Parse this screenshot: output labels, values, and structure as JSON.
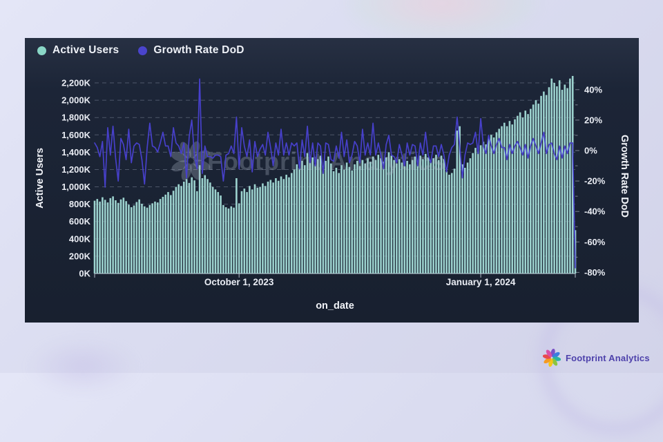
{
  "legend": {
    "items": [
      {
        "label": "Active Users",
        "color": "#89d6c6"
      },
      {
        "label": "Growth Rate DoD",
        "color": "#4a44cc"
      }
    ]
  },
  "watermark": {
    "text": "Footprint Analytics"
  },
  "footer": {
    "brand": "Footprint Analytics"
  },
  "colors": {
    "bar": "#9dd3cf",
    "line": "#4740cb",
    "grid": "rgba(148,158,178,0.42)",
    "baseline": "rgba(205,211,224,0.85)",
    "tick_text": "#eaedf4",
    "axis_title": "#f2f4f9",
    "watermark": "rgba(172,182,198,0.30)",
    "panel_bg": "#1c2537",
    "page_bg": "#dadcf0",
    "brand_text": "#4d41ab"
  },
  "chart_data": {
    "type": "bar+line",
    "title": "",
    "x_axis": {
      "label": "on_date",
      "ticks": [
        {
          "label": "October 1, 2023",
          "index": 55
        },
        {
          "label": "January 1, 2024",
          "index": 147
        }
      ]
    },
    "y_left": {
      "label": "Active Users",
      "min": 0,
      "max": 2200,
      "tick_step": 200,
      "tick_labels": [
        "0K",
        "200K",
        "400K",
        "600K",
        "800K",
        "1,000K",
        "1,200K",
        "1,400K",
        "1,600K",
        "1,800K",
        "2,000K",
        "2,200K"
      ]
    },
    "y_right": {
      "label": "Growth Rate DoD",
      "min": -80,
      "max": 40,
      "tick_step": 20,
      "tick_labels": [
        "-80%",
        "-60%",
        "-40%",
        "-20%",
        "0%",
        "20%",
        "40%"
      ]
    },
    "grid": "dashed-horizontal",
    "legend_position": "top-left",
    "series": [
      {
        "name": "Active Users",
        "type": "bar",
        "unit": "K",
        "values": [
          840,
          860,
          830,
          880,
          850,
          820,
          870,
          890,
          845,
          815,
          855,
          875,
          835,
          795,
          765,
          785,
          825,
          855,
          805,
          775,
          760,
          790,
          810,
          830,
          820,
          860,
          885,
          910,
          940,
          905,
          955,
          1000,
          1030,
          1010,
          1060,
          1090,
          1045,
          1110,
          1075,
          950,
          1250,
          1100,
          1135,
          1090,
          1050,
          1000,
          970,
          940,
          900,
          790,
          765,
          750,
          775,
          760,
          1100,
          810,
          950,
          980,
          940,
          1010,
          970,
          1030,
          990,
          1000,
          1040,
          1010,
          1060,
          1080,
          1050,
          1100,
          1070,
          1120,
          1090,
          1140,
          1110,
          1160,
          1200,
          1260,
          1220,
          1300,
          1250,
          1390,
          1280,
          1340,
          1260,
          1320,
          1360,
          1240,
          1300,
          1350,
          1270,
          1180,
          1220,
          1160,
          1250,
          1200,
          1280,
          1230,
          1190,
          1260,
          1300,
          1240,
          1310,
          1270,
          1330,
          1290,
          1350,
          1310,
          1370,
          1330,
          1290,
          1340,
          1400,
          1360,
          1310,
          1270,
          1320,
          1280,
          1240,
          1300,
          1260,
          1310,
          1350,
          1300,
          1360,
          1320,
          1380,
          1340,
          1290,
          1330,
          1370,
          1310,
          1360,
          1320,
          1180,
          1140,
          1160,
          1210,
          1650,
          1700,
          1260,
          1220,
          1280,
          1330,
          1390,
          1450,
          1420,
          1480,
          1520,
          1490,
          1560,
          1600,
          1570,
          1630,
          1670,
          1700,
          1740,
          1700,
          1760,
          1720,
          1780,
          1820,
          1860,
          1800,
          1880,
          1840,
          1900,
          1950,
          2000,
          1960,
          2050,
          2100,
          2060,
          2150,
          2250,
          2200,
          2160,
          2230,
          2120,
          2180,
          2140,
          2250,
          2280,
          500
        ]
      },
      {
        "name": "Growth Rate DoD",
        "type": "line",
        "unit": "%",
        "values": [
          5,
          2,
          -4,
          6,
          -24,
          15,
          -3,
          16,
          -5,
          -20,
          8,
          4,
          -6,
          14,
          -8,
          3,
          5,
          4,
          -6,
          -22,
          2,
          18,
          3,
          2,
          -1,
          5,
          12,
          3,
          3,
          -4,
          15,
          5,
          3,
          -2,
          5,
          -18,
          9,
          20,
          -3,
          -12,
          47,
          -15,
          3,
          -4,
          -4,
          -5,
          -3,
          -3,
          -4,
          -20,
          -3,
          -2,
          3,
          -2,
          22,
          -12,
          15,
          3,
          -4,
          7,
          -14,
          6,
          -4,
          1,
          4,
          -3,
          12,
          2,
          -10,
          5,
          -3,
          14,
          -3,
          5,
          -3,
          5,
          3,
          5,
          -12,
          7,
          -4,
          16,
          -8,
          5,
          -10,
          5,
          3,
          -15,
          5,
          4,
          -6,
          -7,
          3,
          -5,
          12,
          -4,
          7,
          -8,
          -3,
          6,
          3,
          -8,
          14,
          -3,
          5,
          -3,
          18,
          -3,
          5,
          -3,
          -12,
          4,
          10,
          -3,
          -4,
          -8,
          4,
          -3,
          -10,
          5,
          -3,
          4,
          3,
          -10,
          5,
          -3,
          12,
          -3,
          -8,
          3,
          3,
          -4,
          4,
          -3,
          -14,
          -3,
          2,
          4,
          22,
          3,
          -18,
          -3,
          5,
          4,
          5,
          12,
          -2,
          21,
          3,
          -2,
          10,
          3,
          -2,
          4,
          8,
          2,
          2,
          -6,
          4,
          -2,
          3,
          6,
          2,
          -3,
          4,
          -5,
          3,
          8,
          3,
          -2,
          5,
          12,
          -2,
          4,
          5,
          -2,
          -6,
          3,
          -5,
          3,
          -2,
          5,
          5,
          -77
        ]
      }
    ]
  }
}
